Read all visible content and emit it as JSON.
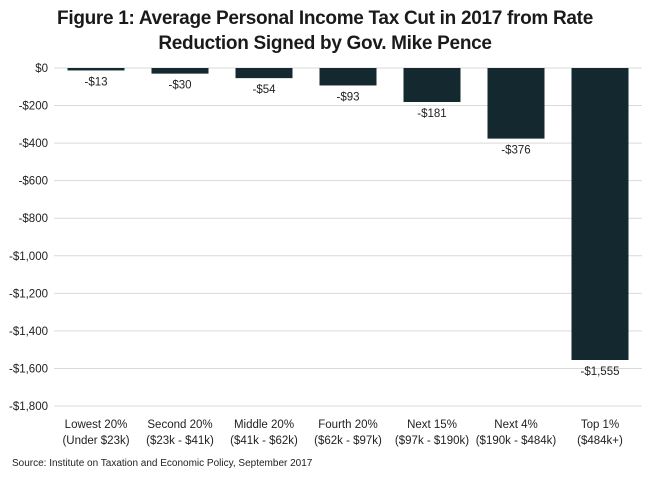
{
  "chart_data": {
    "type": "bar",
    "title": [
      "Figure 1: Average Personal Income Tax Cut in 2017 from Rate",
      "Reduction Signed by Gov. Mike Pence"
    ],
    "categories": [
      [
        "Lowest 20%",
        "(Under $23k)"
      ],
      [
        "Second 20%",
        "($23k - $41k)"
      ],
      [
        "Middle 20%",
        "($41k - $62k)"
      ],
      [
        "Fourth 20%",
        "($62k - $97k)"
      ],
      [
        "Next 15%",
        "($97k - $190k)"
      ],
      [
        "Next 4%",
        "($190k - $484k)"
      ],
      [
        "Top 1%",
        "($484k+)"
      ]
    ],
    "values": [
      -13,
      -30,
      -54,
      -93,
      -181,
      -376,
      -1555
    ],
    "data_labels": [
      "-$13",
      "-$30",
      "-$54",
      "-$93",
      "-$181",
      "-$376",
      "-$1,555"
    ],
    "ylim": [
      -1800,
      0
    ],
    "yticks": [
      0,
      -200,
      -400,
      -600,
      -800,
      -1000,
      -1200,
      -1400,
      -1600,
      -1800
    ],
    "ytick_labels": [
      "$0",
      "-$200",
      "-$400",
      "-$600",
      "-$800",
      "-$1,000",
      "-$1,200",
      "-$1,400",
      "-$1,600",
      "-$1,800"
    ],
    "xlabel": "",
    "ylabel": "",
    "grid": true,
    "bar_color": "#14292f",
    "grid_color": "#d9d9d9"
  },
  "source": "Source: Institute on Taxation and Economic Policy, September 2017"
}
